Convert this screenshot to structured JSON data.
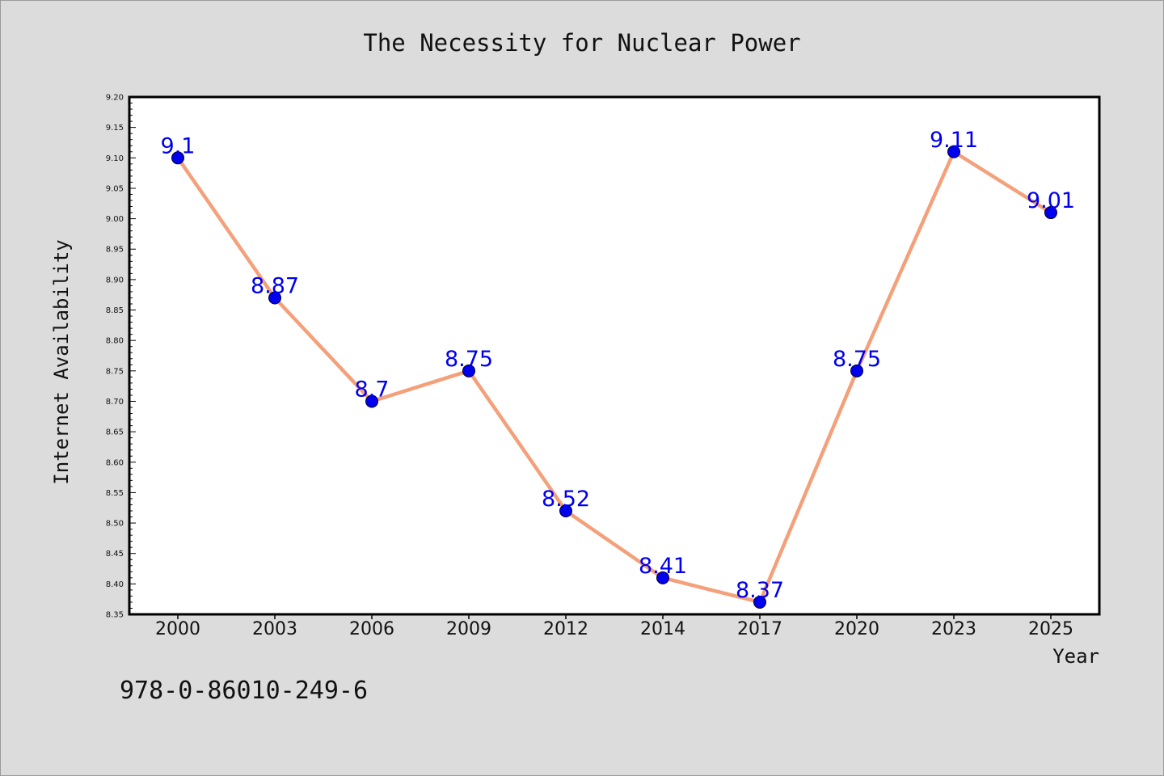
{
  "chart_data": {
    "type": "line",
    "title": "The Necessity for Nuclear Power",
    "xlabel": "Year",
    "ylabel": "Internet Availability",
    "categories": [
      "2000",
      "2003",
      "2006",
      "2009",
      "2012",
      "2014",
      "2017",
      "2020",
      "2023",
      "2025"
    ],
    "series": [
      {
        "values": [
          9.1,
          8.87,
          8.7,
          8.75,
          8.52,
          8.41,
          8.37,
          8.75,
          9.11,
          9.01
        ],
        "labels": [
          "9.1",
          "8.87",
          "8.7",
          "8.75",
          "8.52",
          "8.41",
          "8.37",
          "8.75",
          "9.11",
          "9.01"
        ],
        "line_color": "#f4a07a",
        "marker_color": "#0000ee",
        "label_color": "#0000ee"
      }
    ],
    "ylim": [
      8.35,
      9.2
    ],
    "yticks": [
      "8.35",
      "8.40",
      "8.45",
      "8.50",
      "8.55",
      "8.60",
      "8.65",
      "8.70",
      "8.75",
      "8.80",
      "8.85",
      "8.90",
      "8.95",
      "9.00",
      "9.05",
      "9.10",
      "9.15",
      "9.20"
    ],
    "grid": false,
    "legend": "none"
  },
  "footer": {
    "isbn": "978-0-86010-249-6"
  },
  "colors": {
    "background": "#dcdcdc",
    "plot_background": "#ffffff",
    "axis": "#000000"
  }
}
